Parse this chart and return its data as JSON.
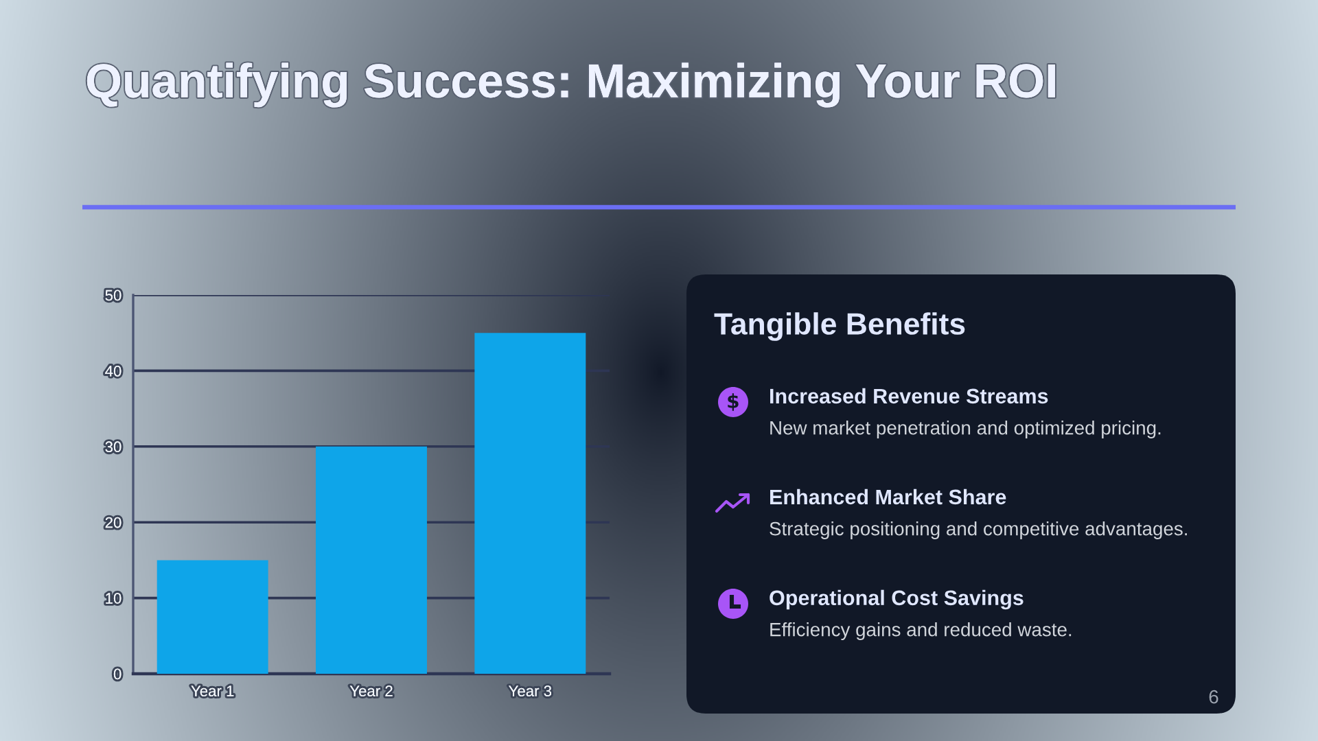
{
  "chart_data": [
    {
      "type": "bar",
      "title": "Quantifying Success: Maximizing Your ROI",
      "categories": [
        "Year 1",
        "Year 2",
        "Year 3"
      ],
      "values": [
        15,
        30,
        45
      ],
      "color": "#0ea5e9",
      "ylim": [
        0,
        50
      ],
      "yticks": [
        0,
        10,
        20,
        30,
        40,
        50
      ],
      "grid": "y"
    },
    {
      "type": "other",
      "title": "Tangible Benefits",
      "annotations": [
        "Increased Revenue Streams",
        "New market penetration and optimized pricing.",
        "Enhanced Market Share",
        "Strategic positioning and competitive advantages.",
        "Operational Cost Savings",
        "Efficiency gains and reduced waste.",
        "6"
      ]
    }
  ]
}
